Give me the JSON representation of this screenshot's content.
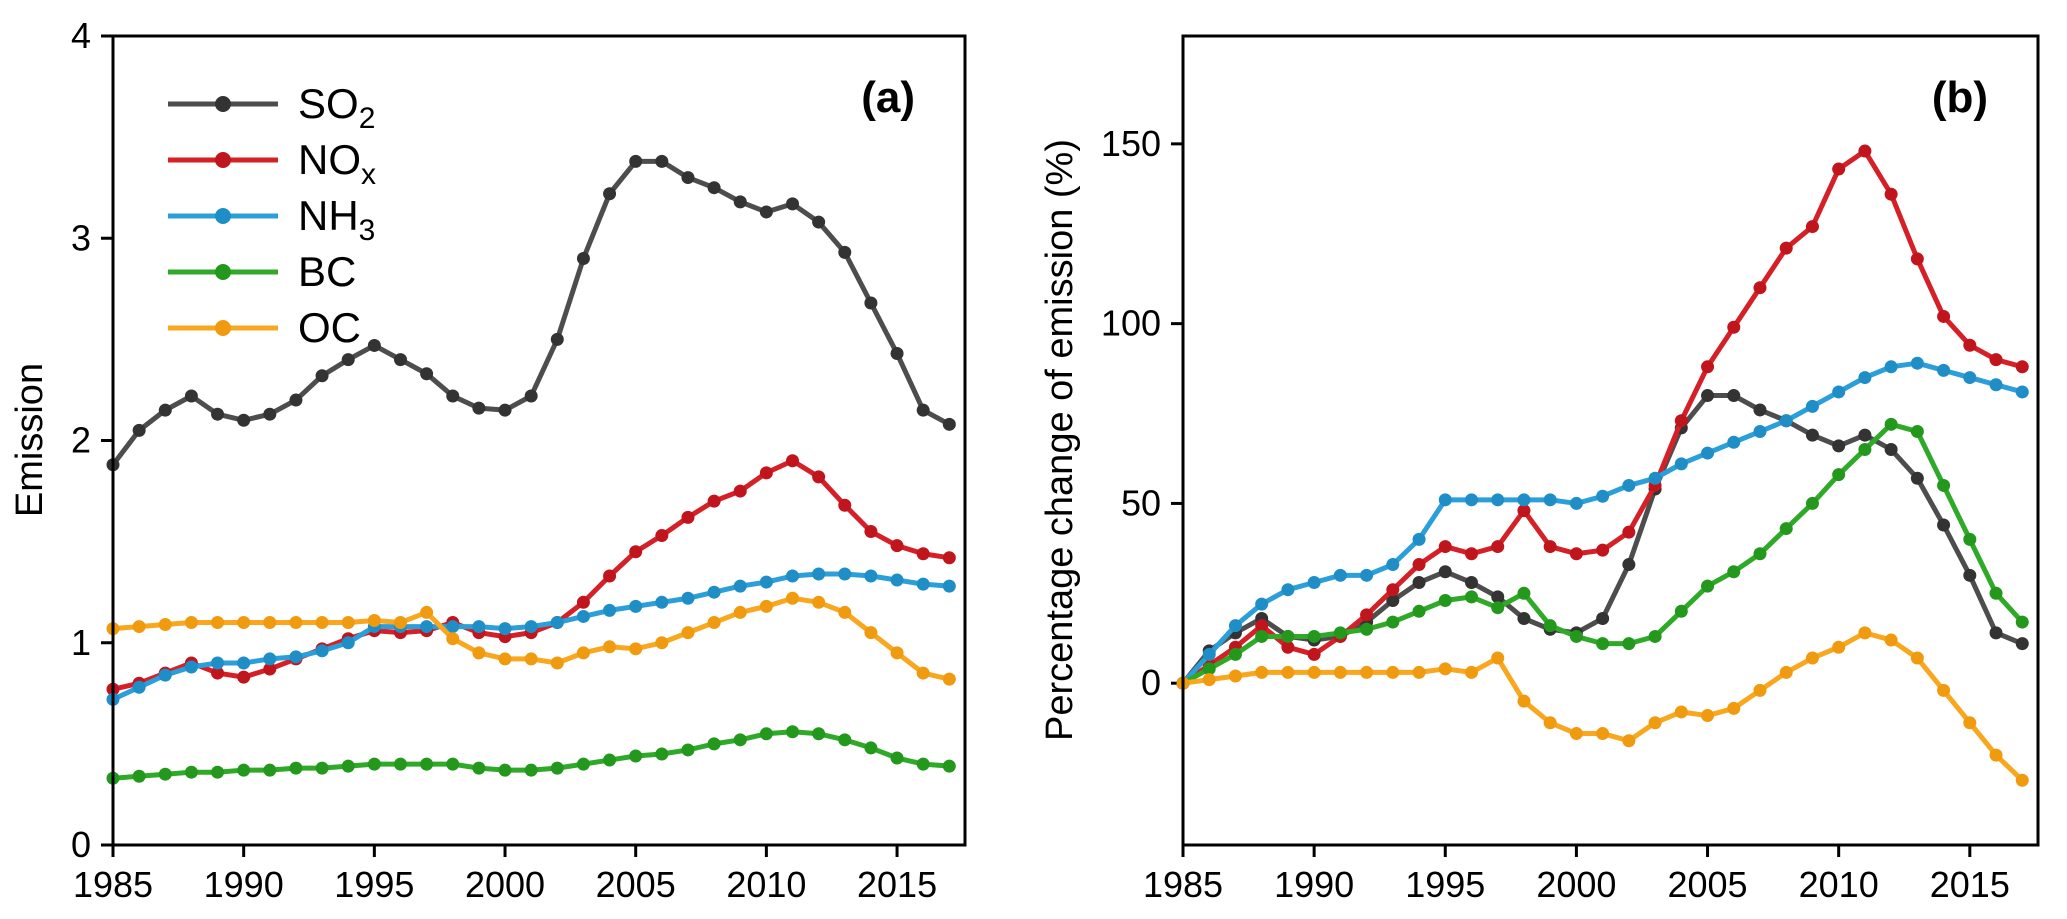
{
  "chart_data": [
    {
      "type": "line",
      "panel": "a",
      "annotation": "(a)",
      "title": "",
      "xlabel": "",
      "ylabel": "Emission",
      "x": [
        1985,
        1986,
        1987,
        1988,
        1989,
        1990,
        1991,
        1992,
        1993,
        1994,
        1995,
        1996,
        1997,
        1998,
        1999,
        2000,
        2001,
        2002,
        2003,
        2004,
        2005,
        2006,
        2007,
        2008,
        2009,
        2010,
        2011,
        2012,
        2013,
        2014,
        2015,
        2016,
        2017
      ],
      "xlim": [
        1985,
        2017.6
      ],
      "ylim": [
        0,
        4
      ],
      "xticks": [
        1985,
        1990,
        1995,
        2000,
        2005,
        2010,
        2015
      ],
      "yticks": [
        0,
        1,
        2,
        3,
        4
      ],
      "grid": false,
      "legend_position": "top-left",
      "series": [
        {
          "name": "SO2",
          "label_base": "SO",
          "label_sub": "2",
          "color": "#4d4d4d",
          "marker_color": "#333333",
          "values": [
            1.88,
            2.05,
            2.15,
            2.22,
            2.13,
            2.1,
            2.13,
            2.2,
            2.32,
            2.4,
            2.47,
            2.4,
            2.33,
            2.22,
            2.16,
            2.15,
            2.22,
            2.5,
            2.9,
            3.22,
            3.38,
            3.38,
            3.3,
            3.25,
            3.18,
            3.13,
            3.17,
            3.08,
            2.93,
            2.68,
            2.43,
            2.15,
            2.08
          ]
        },
        {
          "name": "NOx",
          "label_base": "NO",
          "label_sub": "x",
          "color": "#d62027",
          "marker_color": "#c0151c",
          "values": [
            0.77,
            0.8,
            0.85,
            0.9,
            0.85,
            0.83,
            0.87,
            0.92,
            0.97,
            1.02,
            1.06,
            1.05,
            1.06,
            1.1,
            1.05,
            1.03,
            1.05,
            1.1,
            1.2,
            1.33,
            1.45,
            1.53,
            1.62,
            1.7,
            1.75,
            1.84,
            1.9,
            1.82,
            1.68,
            1.55,
            1.48,
            1.44,
            1.42
          ]
        },
        {
          "name": "NH3",
          "label_base": "NH",
          "label_sub": "3",
          "color": "#2b9fd9",
          "marker_color": "#1f8ec7",
          "values": [
            0.72,
            0.78,
            0.84,
            0.88,
            0.9,
            0.9,
            0.92,
            0.93,
            0.96,
            1.0,
            1.08,
            1.08,
            1.08,
            1.08,
            1.08,
            1.07,
            1.08,
            1.1,
            1.13,
            1.16,
            1.18,
            1.2,
            1.22,
            1.25,
            1.28,
            1.3,
            1.33,
            1.34,
            1.34,
            1.33,
            1.31,
            1.29,
            1.28
          ]
        },
        {
          "name": "BC",
          "label_base": "BC",
          "label_sub": "",
          "color": "#2faa28",
          "marker_color": "#23981d",
          "values": [
            0.33,
            0.34,
            0.35,
            0.36,
            0.36,
            0.37,
            0.37,
            0.38,
            0.38,
            0.39,
            0.4,
            0.4,
            0.4,
            0.4,
            0.38,
            0.37,
            0.37,
            0.38,
            0.4,
            0.42,
            0.44,
            0.45,
            0.47,
            0.5,
            0.52,
            0.55,
            0.56,
            0.55,
            0.52,
            0.48,
            0.43,
            0.4,
            0.39
          ]
        },
        {
          "name": "OC",
          "label_base": "OC",
          "label_sub": "",
          "color": "#f9a71f",
          "marker_color": "#f09a10",
          "values": [
            1.07,
            1.08,
            1.09,
            1.1,
            1.1,
            1.1,
            1.1,
            1.1,
            1.1,
            1.1,
            1.11,
            1.1,
            1.15,
            1.02,
            0.95,
            0.92,
            0.92,
            0.9,
            0.95,
            0.98,
            0.97,
            1.0,
            1.05,
            1.1,
            1.15,
            1.18,
            1.22,
            1.2,
            1.15,
            1.05,
            0.95,
            0.85,
            0.82
          ]
        }
      ]
    },
    {
      "type": "line",
      "panel": "b",
      "annotation": "(b)",
      "title": "",
      "xlabel": "",
      "ylabel": "Percentage change of emission (%)",
      "x": [
        1985,
        1986,
        1987,
        1988,
        1989,
        1990,
        1991,
        1992,
        1993,
        1994,
        1995,
        1996,
        1997,
        1998,
        1999,
        2000,
        2001,
        2002,
        2003,
        2004,
        2005,
        2006,
        2007,
        2008,
        2009,
        2010,
        2011,
        2012,
        2013,
        2014,
        2015,
        2016,
        2017
      ],
      "xlim": [
        1985,
        2017.6
      ],
      "ylim": [
        -45,
        180
      ],
      "xticks": [
        1985,
        1990,
        1995,
        2000,
        2005,
        2010,
        2015
      ],
      "yticks": [
        0,
        50,
        100,
        150
      ],
      "grid": false,
      "legend_position": "none",
      "series": [
        {
          "name": "SO2",
          "label_base": "SO",
          "label_sub": "2",
          "color": "#4d4d4d",
          "marker_color": "#333333",
          "values": [
            0,
            9,
            14,
            18,
            13,
            12,
            13,
            17,
            23,
            28,
            31,
            28,
            24,
            18,
            15,
            14,
            18,
            33,
            54,
            71,
            80,
            80,
            76,
            73,
            69,
            66,
            69,
            65,
            57,
            44,
            30,
            14,
            11
          ]
        },
        {
          "name": "NOx",
          "label_base": "NO",
          "label_sub": "x",
          "color": "#d62027",
          "marker_color": "#c0151c",
          "values": [
            0,
            5,
            10,
            16,
            10,
            8,
            13,
            19,
            26,
            33,
            38,
            36,
            38,
            48,
            38,
            36,
            37,
            42,
            55,
            73,
            88,
            99,
            110,
            121,
            127,
            143,
            148,
            136,
            118,
            102,
            94,
            90,
            88
          ]
        },
        {
          "name": "NH3",
          "label_base": "NH",
          "label_sub": "3",
          "color": "#2b9fd9",
          "marker_color": "#1f8ec7",
          "values": [
            0,
            8,
            16,
            22,
            26,
            28,
            30,
            30,
            33,
            40,
            51,
            51,
            51,
            51,
            51,
            50,
            52,
            55,
            57,
            61,
            64,
            67,
            70,
            73,
            77,
            81,
            85,
            88,
            89,
            87,
            85,
            83,
            81
          ]
        },
        {
          "name": "BC",
          "label_base": "BC",
          "label_sub": "",
          "color": "#2faa28",
          "marker_color": "#23981d",
          "values": [
            0,
            4,
            8,
            13,
            13,
            13,
            14,
            15,
            17,
            20,
            23,
            24,
            21,
            25,
            16,
            13,
            11,
            11,
            13,
            20,
            27,
            31,
            36,
            43,
            50,
            58,
            65,
            72,
            70,
            55,
            40,
            25,
            17
          ]
        },
        {
          "name": "OC",
          "label_base": "OC",
          "label_sub": "",
          "color": "#f9a71f",
          "marker_color": "#f09a10",
          "values": [
            0,
            1,
            2,
            3,
            3,
            3,
            3,
            3,
            3,
            3,
            4,
            3,
            7,
            -5,
            -11,
            -14,
            -14,
            -16,
            -11,
            -8,
            -9,
            -7,
            -2,
            3,
            7,
            10,
            14,
            12,
            7,
            -2,
            -11,
            -20,
            -27
          ]
        }
      ]
    }
  ]
}
